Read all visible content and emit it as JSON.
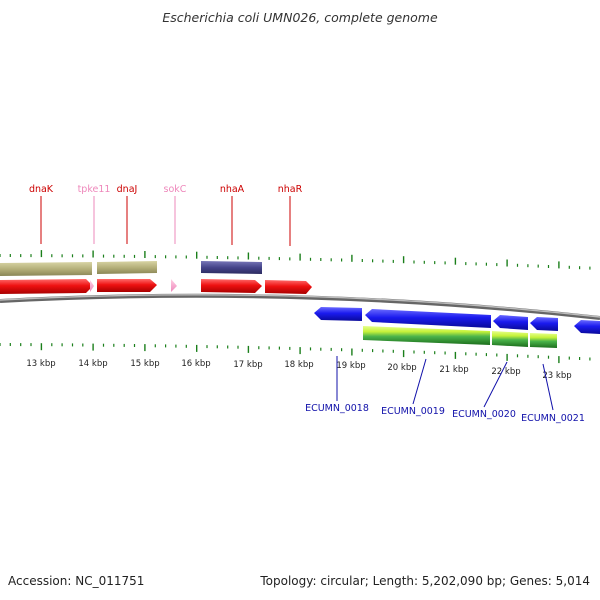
{
  "title": "Escherichia coli UMN026, complete genome",
  "footer": {
    "accession": "Accession: NC_011751",
    "summary": "Topology: circular; Length: 5,202,090 bp; Genes: 5,014"
  },
  "colors": {
    "tick": "#1a7f1a",
    "axis": "#888888",
    "forward_gene": "#ee1111",
    "reverse_gene": "#1a1aee",
    "pseudogene_pink": "#ffaacc",
    "olive_track": "#b5b07a",
    "navy_track": "#45448a",
    "green_track": "#2e9a2e",
    "lime_track": "#c5f23a",
    "label_red": "#cc0000",
    "label_pink": "#ee88bb",
    "label_blue": "#1111aa"
  },
  "scale_labels": [
    "13 kbp",
    "14 kbp",
    "15 kbp",
    "16 kbp",
    "17 kbp",
    "18 kbp",
    "19 kbp",
    "20 kbp",
    "21 kbp",
    "22 kbp",
    "23 kbp"
  ],
  "top_labels": [
    {
      "text": "dnaK",
      "color": "label_red"
    },
    {
      "text": "tpke11",
      "color": "label_pink"
    },
    {
      "text": "dnaJ",
      "color": "label_red"
    },
    {
      "text": "sokC",
      "color": "label_pink"
    },
    {
      "text": "nhaA",
      "color": "label_red"
    },
    {
      "text": "nhaR",
      "color": "label_red"
    }
  ],
  "bottom_labels": [
    {
      "text": "ECUMN_0018"
    },
    {
      "text": "ECUMN_0019"
    },
    {
      "text": "ECUMN_0020"
    },
    {
      "text": "ECUMN_0021"
    }
  ]
}
